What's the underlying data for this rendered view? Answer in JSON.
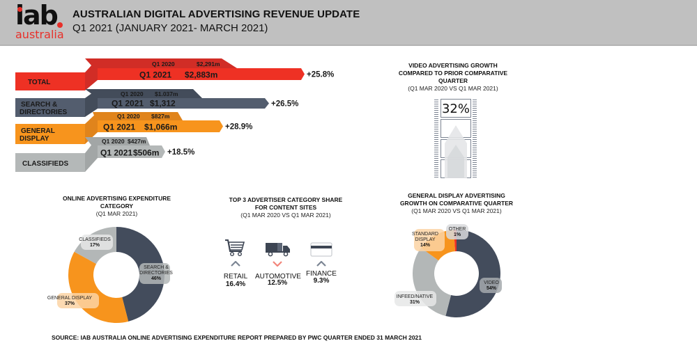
{
  "header": {
    "logo_main": "iab",
    "logo_sub": "australia",
    "title": "AUSTRALIAN DIGITAL ADVERTISING REVENUE UPDATE",
    "subtitle": "Q1 2021 (JANUARY 2021- MARCH 2021)"
  },
  "revenue": {
    "rows": [
      {
        "label_1": "TOTAL",
        "label_2": "",
        "prev_period": "Q1 2020",
        "prev_value": "$2,291m",
        "curr_period": "Q1 2021",
        "curr_value": "$2,883m",
        "growth": "+25.8%",
        "color": "#ee3124",
        "dark_color": "#d12d26",
        "prev_amount": 2291,
        "curr_amount": 2883
      },
      {
        "label_1": "SEARCH &",
        "label_2": "DIRECTORIES",
        "prev_period": "Q1 2020",
        "prev_value": "$1.037m",
        "curr_period": "Q1 2021",
        "curr_value": "$1,312",
        "growth": "+26.5%",
        "color": "#535d6e",
        "dark_color": "#434c5a",
        "prev_amount": 1037,
        "curr_amount": 1312
      },
      {
        "label_1": "GENERAL",
        "label_2": "DISPLAY",
        "prev_period": "Q1 2020",
        "prev_value": "$827m",
        "curr_period": "Q1 2021",
        "curr_value": "$1,066m",
        "growth": "+28.9%",
        "color": "#f7941d",
        "dark_color": "#e0841c",
        "prev_amount": 827,
        "curr_amount": 1066
      },
      {
        "label_1": "CLASSIFIEDS",
        "label_2": "",
        "prev_period": "Q1 2020",
        "prev_value": "$427m",
        "curr_period": "Q1 2021",
        "curr_value": "$506m",
        "growth": "+18.5%",
        "color": "#b4b8b8",
        "dark_color": "#a2a6a6",
        "prev_amount": 427,
        "curr_amount": 506
      }
    ]
  },
  "video": {
    "title_1": "VIDEO ADVERTISING GROWTH",
    "title_2": "COMPARED TO PRIOR COMPARATIVE",
    "title_3": "QUARTER",
    "subtitle": "(Q1 MAR 2020 VS Q1 MAR 2021)",
    "growth": "32%",
    "icon": "film-strip-icon"
  },
  "expenditure": {
    "title_1": "ONLINE ADVERTISING EXPENDITURE",
    "title_2": "CATEGORY",
    "subtitle": "(Q1 MAR 2021)"
  },
  "top3": {
    "title_1": "TOP 3 ADVERTISER CATEGORY SHARE",
    "title_2": "FOR CONTENT SITES",
    "subtitle": "(Q1 MAR 2020 VS Q1 MAR 2021)",
    "items": [
      {
        "label": "RETAIL",
        "value": "16.4%",
        "icon": "shopping-cart-icon",
        "trend": "up",
        "trend_color": "#7c8694"
      },
      {
        "label": "AUTOMOTIVE",
        "value": "12.5%",
        "icon": "truck-icon",
        "trend": "down",
        "trend_color": "#f2857a"
      },
      {
        "label": "FINANCE",
        "value": "9.3%",
        "icon": "credit-card-icon",
        "trend": "up",
        "trend_color": "#7c8694"
      }
    ]
  },
  "display_growth": {
    "title_1": "GENERAL DISPLAY ADVERTISING",
    "title_2": "GROWTH ON COMPARATIVE QUARTER",
    "subtitle": "(Q1 MAR 2020 VS Q1 MAR 2021)"
  },
  "chart_data": [
    {
      "type": "pie",
      "title": "ONLINE ADVERTISING EXPENDITURE CATEGORY",
      "subtitle": "(Q1 MAR 2021)",
      "categories": [
        "SEARCH & DIRECTORIES",
        "GENERAL DISPLAY",
        "CLASSIFIEDS"
      ],
      "values": [
        46,
        37,
        17
      ],
      "labels": [
        "46%",
        "37%",
        "17%"
      ],
      "colors": [
        "#434c5c",
        "#f7941d",
        "#b3b7b7"
      ],
      "donut": true
    },
    {
      "type": "pie",
      "title": "GENERAL DISPLAY ADVERTISING GROWTH ON COMPARATIVE QUARTER",
      "subtitle": "(Q1 MAR 2020 VS Q1 MAR 2021)",
      "categories": [
        "VIDEO",
        "INFEED/NATIVE",
        "STANDARD DISPLAY",
        "OTHER"
      ],
      "values": [
        54,
        31,
        14,
        1
      ],
      "labels": [
        "54%",
        "31%",
        "14%",
        "1%"
      ],
      "colors": [
        "#434c5c",
        "#b3b7b7",
        "#f7941d",
        "#ee3124"
      ],
      "donut": true
    }
  ],
  "footer": {
    "source": "SOURCE:  IAB AUSTRALIA ONLINE ADVERTISING EXPENDITURE REPORT PREPARED BY PWC QUARTER ENDED 31 MARCH 2021"
  }
}
